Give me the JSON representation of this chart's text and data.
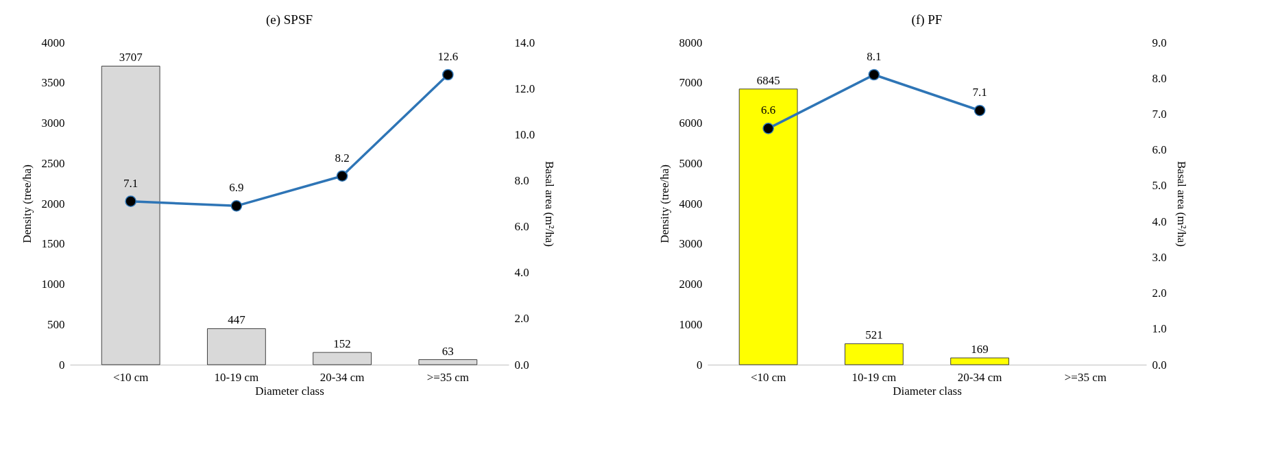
{
  "chart_data": [
    {
      "type": "bar",
      "title": "(e) SPSF",
      "xlabel": "Diameter class",
      "ylabel": "Density (tree/ha)",
      "y2label": "Basal area (m²/ha)",
      "categories": [
        "<10 cm",
        "10-19 cm",
        "20-34 cm",
        ">=35 cm"
      ],
      "series": [
        {
          "color": "#d9d9d9",
          "values": [
            3707,
            447,
            152,
            63
          ]
        },
        {
          "type": "line",
          "axis": "y2",
          "color": "#2e75b6",
          "values": [
            7.1,
            6.9,
            8.2,
            12.6
          ]
        }
      ],
      "ylim": [
        0,
        4000
      ],
      "yticks": [
        0,
        500,
        1000,
        1500,
        2000,
        2500,
        3000,
        3500,
        4000
      ],
      "y2lim": [
        0,
        14
      ],
      "y2ticks": [
        {
          "value": 0,
          "label": "0.0"
        },
        {
          "value": 2,
          "label": "2.0"
        },
        {
          "value": 4,
          "label": "4.0"
        },
        {
          "value": 6,
          "label": "6.0"
        },
        {
          "value": 8,
          "label": "8.0"
        },
        {
          "value": 10,
          "label": "10.0"
        },
        {
          "value": 12,
          "label": "12.0"
        },
        {
          "value": 14,
          "label": "14.0"
        }
      ],
      "marker": "circle",
      "data_labels": true,
      "legend": false,
      "grid": false
    },
    {
      "type": "bar",
      "title": "(f) PF",
      "xlabel": "Diameter class",
      "ylabel": "Density (tree/ha)",
      "y2label": "Basal area (m²/ha)",
      "categories": [
        "<10 cm",
        "10-19 cm",
        "20-34 cm",
        ">=35 cm"
      ],
      "series": [
        {
          "color": "#ffff00",
          "values": [
            6845,
            521,
            169,
            null
          ]
        },
        {
          "type": "line",
          "axis": "y2",
          "color": "#2e75b6",
          "values": [
            6.6,
            8.1,
            7.1,
            null
          ]
        }
      ],
      "ylim": [
        0,
        8000
      ],
      "yticks": [
        0,
        1000,
        2000,
        3000,
        4000,
        5000,
        6000,
        7000,
        8000
      ],
      "y2lim": [
        0,
        9
      ],
      "y2ticks": [
        {
          "value": 0,
          "label": "0.0"
        },
        {
          "value": 1,
          "label": "1.0"
        },
        {
          "value": 2,
          "label": "2.0"
        },
        {
          "value": 3,
          "label": "3.0"
        },
        {
          "value": 4,
          "label": "4.0"
        },
        {
          "value": 5,
          "label": "5.0"
        },
        {
          "value": 6,
          "label": "6.0"
        },
        {
          "value": 7,
          "label": "7.0"
        },
        {
          "value": 8,
          "label": "8.0"
        },
        {
          "value": 9,
          "label": "9.0"
        }
      ],
      "marker": "circle",
      "data_labels": true,
      "legend": false,
      "grid": false
    }
  ]
}
